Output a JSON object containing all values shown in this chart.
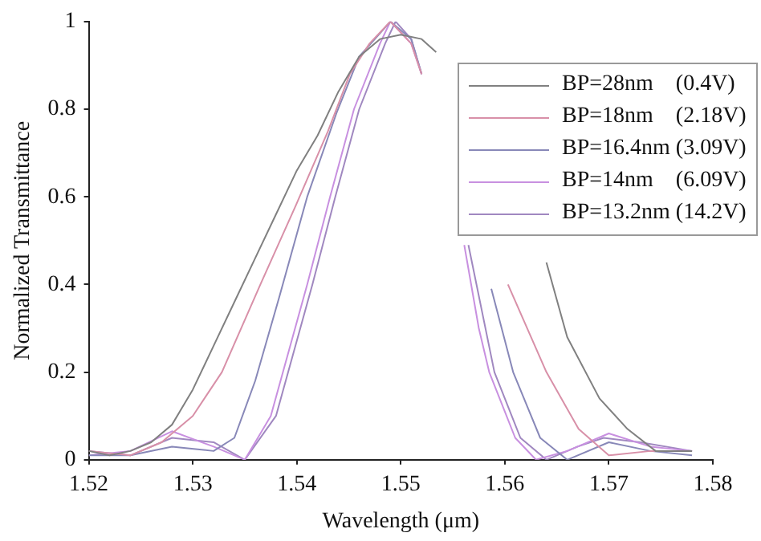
{
  "chart_data": {
    "type": "line",
    "xlabel": "Wavelength (μm)",
    "ylabel": "Normalized Transmittance",
    "xlim": [
      1.52,
      1.58
    ],
    "xticks": [
      1.52,
      1.53,
      1.54,
      1.55,
      1.56,
      1.57,
      1.58
    ],
    "ylim": [
      0,
      1
    ],
    "yticks": [
      0,
      {
        "value": 0.2,
        "label": "0.2"
      },
      {
        "value": 0.4,
        "label": "0.4"
      },
      {
        "value": 0.6,
        "label": "0.6"
      },
      {
        "value": 0.8,
        "label": "0.8"
      },
      1
    ],
    "grid": false,
    "legend": "top right",
    "marker": "none",
    "line_style": "solid",
    "series": [
      {
        "name": "BP=28nm    (0.4V)",
        "color": "#808080",
        "x": [
          1.52,
          1.522,
          1.524,
          1.526,
          1.528,
          1.53,
          1.532,
          1.534,
          1.536,
          1.538,
          1.54,
          1.542,
          1.544,
          1.546,
          1.548,
          1.55,
          1.552,
          1.5534,
          1.558,
          1.564,
          1.566,
          1.5691,
          1.5718,
          1.5745,
          1.576,
          1.578
        ],
        "values": [
          0.02,
          0.01,
          0.02,
          0.04,
          0.08,
          0.16,
          0.26,
          0.36,
          0.46,
          0.56,
          0.66,
          0.74,
          0.84,
          0.92,
          0.96,
          0.97,
          0.96,
          0.93,
          null,
          0.45,
          0.28,
          0.14,
          0.07,
          0.02,
          0.02,
          0.02
        ]
      },
      {
        "name": "BP=18nm    (2.18V)",
        "color": "#d890a8",
        "x": [
          1.52,
          1.524,
          1.527,
          1.53,
          1.5328,
          1.5365,
          1.5399,
          1.543,
          1.5451,
          1.547,
          1.549,
          1.551,
          1.552,
          1.556,
          1.5603,
          1.564,
          1.5671,
          1.57,
          1.574,
          1.578
        ],
        "values": [
          0.02,
          0.01,
          0.04,
          0.1,
          0.2,
          0.4,
          0.58,
          0.75,
          0.88,
          0.95,
          1,
          0.95,
          0.88,
          null,
          0.4,
          0.2,
          0.07,
          0.01,
          0.02,
          0.02
        ]
      },
      {
        "name": "BP=16.4nm (3.09V)",
        "color": "#8888b8",
        "x": [
          1.52,
          1.524,
          1.528,
          1.532,
          1.534,
          1.536,
          1.5383,
          1.541,
          1.5438,
          1.546,
          1.549,
          1.551,
          1.552,
          1.556,
          1.5587,
          1.5608,
          1.5634,
          1.566,
          1.57,
          1.574,
          1.578
        ],
        "values": [
          0.01,
          0.01,
          0.03,
          0.02,
          0.05,
          0.18,
          0.37,
          0.6,
          0.79,
          0.92,
          1,
          0.96,
          0.88,
          null,
          0.39,
          0.2,
          0.05,
          0,
          0.04,
          0.02,
          0.01
        ]
      },
      {
        "name": "BP=14nm    (6.09V)",
        "color": "#c890e0",
        "x": [
          1.52,
          1.524,
          1.528,
          1.532,
          1.535,
          1.5375,
          1.541,
          1.5432,
          1.5455,
          1.548,
          1.549,
          1.551,
          1.552,
          1.554,
          1.5561,
          1.5575,
          1.5585,
          1.561,
          1.563,
          1.566,
          1.57,
          1.574,
          1.578
        ],
        "values": [
          0.01,
          0.02,
          0.065,
          0.03,
          0,
          0.1,
          0.4,
          0.6,
          0.8,
          0.95,
          1,
          0.95,
          0.88,
          null,
          0.49,
          0.3,
          0.2,
          0.05,
          0,
          0.02,
          0.06,
          0.03,
          0.02
        ]
      },
      {
        "name": "BP=13.2nm (14.2V)",
        "color": "#a088c0",
        "x": [
          1.52,
          1.524,
          1.528,
          1.532,
          1.535,
          1.538,
          1.5415,
          1.5437,
          1.546,
          1.5485,
          1.5495,
          1.551,
          1.552,
          1.554,
          1.5565,
          1.559,
          1.5615,
          1.564,
          1.567,
          1.5695,
          1.573,
          1.578
        ],
        "values": [
          0.02,
          0.01,
          0.05,
          0.04,
          0,
          0.1,
          0.4,
          0.6,
          0.8,
          0.95,
          1,
          0.96,
          0.88,
          null,
          0.49,
          0.2,
          0.05,
          0,
          0.03,
          0.05,
          0.04,
          0.02
        ]
      }
    ]
  }
}
